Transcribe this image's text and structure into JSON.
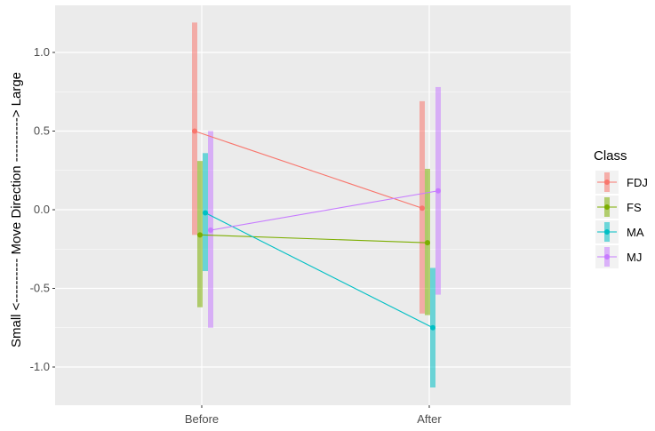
{
  "chart_data": {
    "type": "line",
    "categories": [
      "Before",
      "After"
    ],
    "ylim": [
      -1.25,
      1.3
    ],
    "yticks": [
      -1.0,
      -0.5,
      0.0,
      0.5,
      1.0
    ],
    "ytick_labels": [
      "-1.0",
      "-0.5",
      "0.0",
      "0.5",
      "1.0"
    ],
    "ylabel": "Small <----------   Move Direction   ----------> Large",
    "xlabel": "",
    "legend_title": "Class",
    "legend_position": "right",
    "grid": true,
    "series": [
      {
        "name": "FDJ",
        "color": "#F8766D",
        "values": [
          0.5,
          0.01
        ],
        "lower": [
          -0.16,
          -0.66
        ],
        "upper": [
          1.19,
          0.69
        ]
      },
      {
        "name": "FS",
        "color": "#7CAE00",
        "values": [
          -0.16,
          -0.21
        ],
        "lower": [
          -0.62,
          -0.67
        ],
        "upper": [
          0.31,
          0.26
        ]
      },
      {
        "name": "MA",
        "color": "#00BFC4",
        "values": [
          -0.02,
          -0.75
        ],
        "lower": [
          -0.39,
          -1.13
        ],
        "upper": [
          0.36,
          -0.37
        ]
      },
      {
        "name": "MJ",
        "color": "#C77CFF",
        "values": [
          -0.13,
          0.12
        ],
        "lower": [
          -0.75,
          -0.54
        ],
        "upper": [
          0.5,
          0.78
        ]
      }
    ]
  }
}
